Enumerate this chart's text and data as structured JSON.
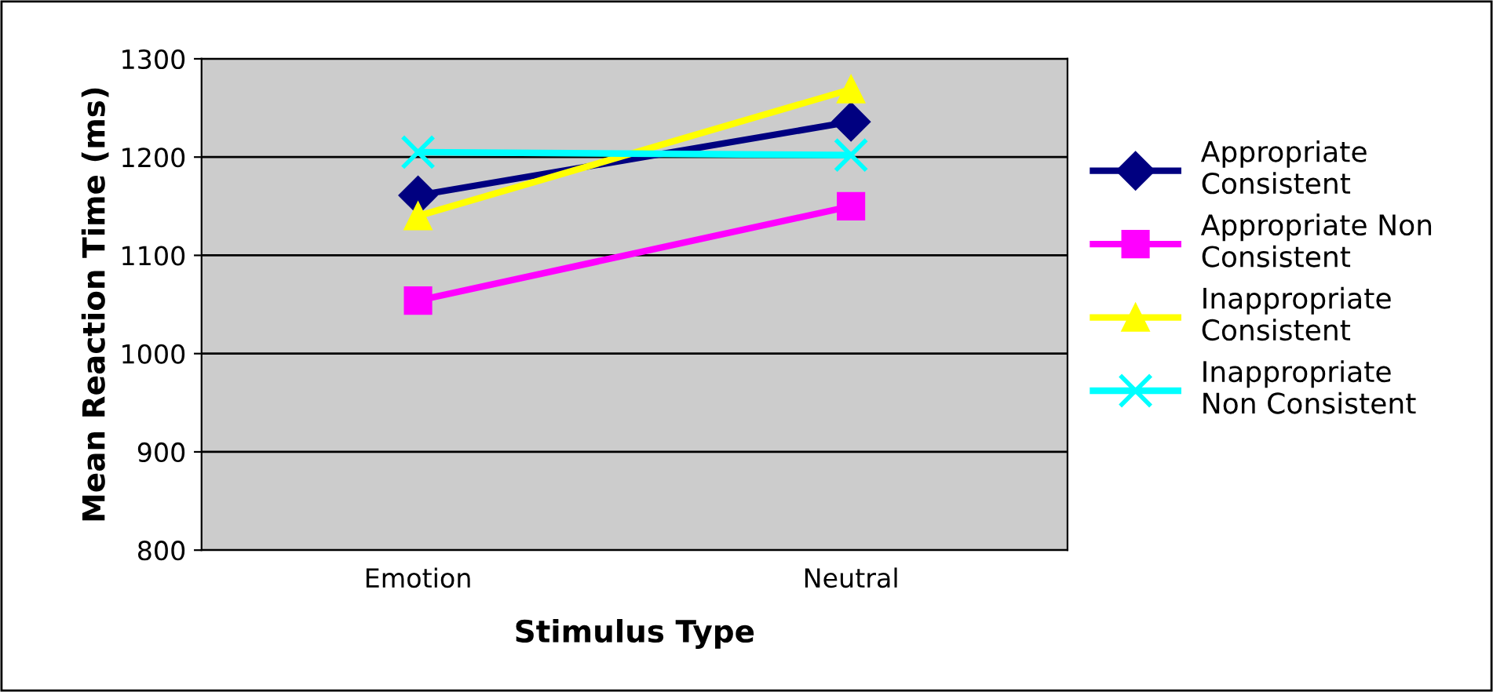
{
  "chart_data": {
    "type": "line",
    "xlabel": "Stimulus Type",
    "ylabel": "Mean Reaction Time (ms)",
    "categories": [
      "Emotion",
      "Neutral"
    ],
    "series": [
      {
        "name": "Appropriate Consistent",
        "color": "#000080",
        "marker": "diamond",
        "values": [
          1161,
          1236
        ]
      },
      {
        "name": "Appropriate Non Consistent",
        "color": "#ff00ff",
        "marker": "square",
        "values": [
          1054,
          1150
        ]
      },
      {
        "name": "Inappropriate Consistent",
        "color": "#ffff00",
        "marker": "triangle",
        "values": [
          1140,
          1269
        ]
      },
      {
        "name": "Inappropriate Non Consistent",
        "color": "#00ffff",
        "marker": "cross",
        "values": [
          1205,
          1202
        ]
      }
    ],
    "ylim": [
      800,
      1300
    ],
    "yticks": [
      800,
      900,
      1000,
      1100,
      1200,
      1300
    ],
    "grid": "y",
    "legend": "right"
  }
}
